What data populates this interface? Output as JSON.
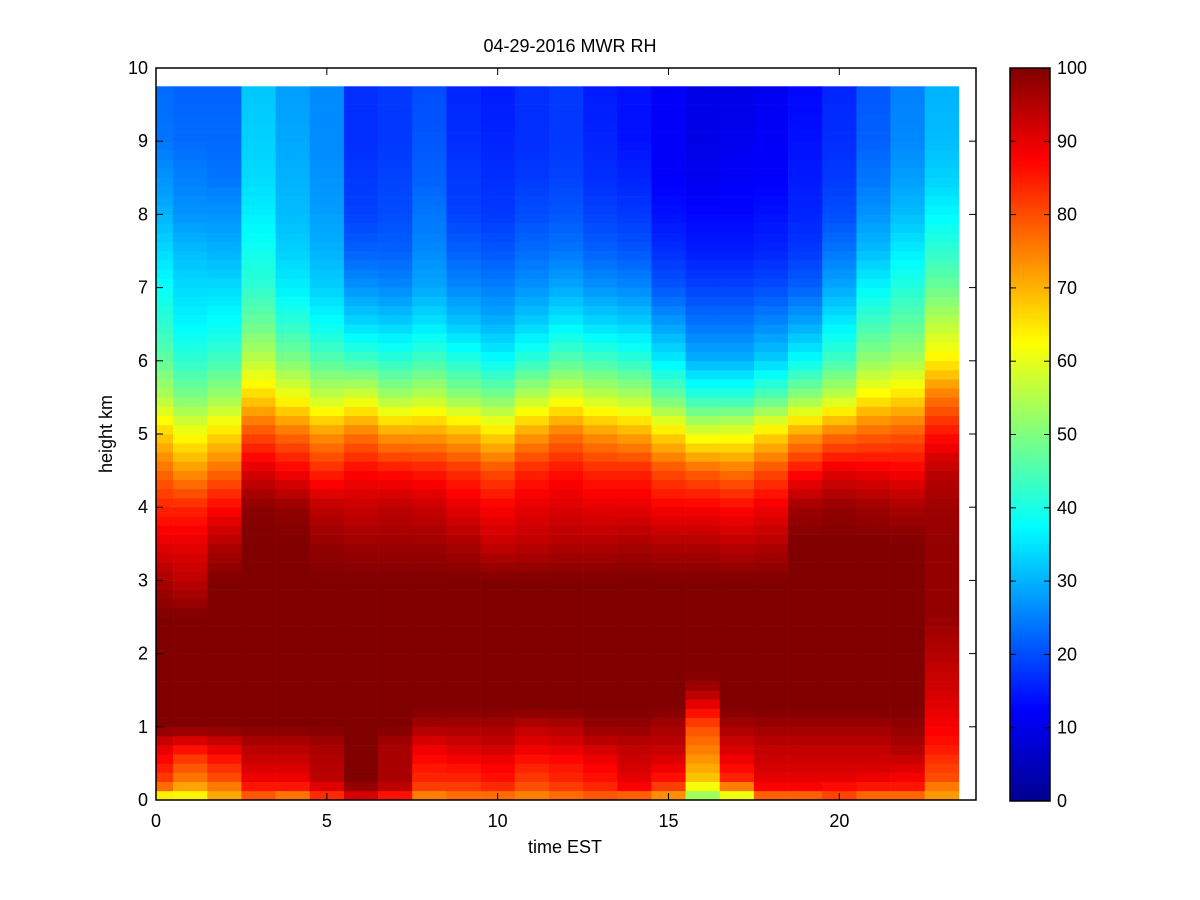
{
  "chart_data": {
    "type": "heatmap",
    "title": "04-29-2016 MWR RH",
    "xlabel": "time EST",
    "ylabel": "height km",
    "xlim": [
      0,
      24
    ],
    "ylim": [
      0,
      10
    ],
    "xticks": [
      0,
      5,
      10,
      15,
      20
    ],
    "xtick_labels": [
      "0",
      "5",
      "10",
      "15",
      "20"
    ],
    "yticks": [
      0,
      1,
      2,
      3,
      4,
      5,
      6,
      7,
      8,
      9,
      10
    ],
    "ytick_labels": [
      "0",
      "1",
      "2",
      "3",
      "4",
      "5",
      "6",
      "7",
      "8",
      "9",
      "10"
    ],
    "colormap": "jet",
    "clim": [
      0,
      100
    ],
    "colorbar_ticks": [
      0,
      10,
      20,
      30,
      40,
      50,
      60,
      70,
      80,
      90,
      100
    ],
    "colorbar_tick_labels": [
      "0",
      "10",
      "20",
      "30",
      "40",
      "50",
      "60",
      "70",
      "80",
      "90",
      "100"
    ],
    "grid": false,
    "data_extent": {
      "x": [
        0,
        23.5
      ],
      "y": [
        0,
        9.75
      ]
    },
    "x_time_centers": [
      0.25,
      1,
      2,
      3,
      4,
      5,
      6,
      7,
      8,
      9,
      10,
      11,
      12,
      13,
      14,
      15,
      16,
      17,
      18,
      19,
      20,
      21,
      22,
      23
    ],
    "x_time_edges": [
      0,
      0.5,
      1.5,
      2.5,
      3.5,
      4.5,
      5.5,
      6.5,
      7.5,
      8.5,
      9.5,
      10.5,
      11.5,
      12.5,
      13.5,
      14.5,
      15.5,
      16.5,
      17.5,
      18.5,
      19.5,
      20.5,
      21.5,
      22.5,
      23.5
    ],
    "height_km_levels": [
      0,
      0.05,
      0.1,
      0.2,
      0.3,
      0.5,
      0.75,
      1,
      1.25,
      1.5,
      1.75,
      2,
      2.25,
      2.5,
      3,
      3.5,
      4,
      4.5,
      5,
      5.5,
      6,
      6.5,
      7,
      7.5,
      8,
      8.5,
      9,
      9.75
    ],
    "rh_profiles_percent": [
      [
        60,
        62,
        70,
        78,
        82,
        86,
        91,
        100,
        100,
        100,
        100,
        100,
        100,
        100,
        96,
        90,
        84,
        77,
        67,
        55,
        47,
        42,
        38,
        34,
        30,
        27,
        24,
        23
      ],
      [
        58,
        62,
        68,
        72,
        76,
        80,
        88,
        100,
        100,
        100,
        100,
        100,
        100,
        100,
        94,
        90,
        84,
        73,
        62,
        50,
        42,
        37,
        34,
        31,
        27,
        25,
        23,
        22
      ],
      [
        65,
        70,
        74,
        76,
        80,
        84,
        91,
        100,
        100,
        100,
        100,
        100,
        100,
        100,
        100,
        95,
        87,
        77,
        66,
        53,
        44,
        38,
        34,
        30,
        27,
        24,
        23,
        22
      ],
      [
        70,
        78,
        82,
        86,
        89,
        92,
        95,
        100,
        100,
        100,
        100,
        100,
        100,
        100,
        100,
        100,
        99,
        91,
        80,
        67,
        56,
        48,
        42,
        39,
        36,
        34,
        33,
        32
      ],
      [
        66,
        74,
        82,
        86,
        89,
        92,
        95,
        100,
        100,
        100,
        100,
        100,
        100,
        100,
        100,
        100,
        98,
        88,
        77,
        62,
        50,
        42,
        36,
        33,
        31,
        30,
        29,
        28
      ],
      [
        72,
        82,
        87,
        91,
        94,
        95,
        96,
        100,
        100,
        100,
        100,
        100,
        100,
        100,
        100,
        98,
        94,
        84,
        73,
        57,
        46,
        38,
        33,
        30,
        28,
        27,
        26,
        26
      ],
      [
        78,
        90,
        96,
        98,
        100,
        100,
        100,
        100,
        100,
        100,
        100,
        100,
        100,
        100,
        100,
        97,
        93,
        87,
        76,
        59,
        44,
        34,
        27,
        22,
        19,
        18,
        17,
        17
      ],
      [
        72,
        84,
        92,
        94,
        96,
        96,
        96,
        100,
        100,
        100,
        100,
        100,
        100,
        100,
        100,
        97,
        94,
        86,
        72,
        54,
        42,
        33,
        26,
        22,
        20,
        19,
        18,
        18
      ],
      [
        66,
        74,
        78,
        82,
        84,
        86,
        90,
        96,
        100,
        100,
        100,
        100,
        100,
        100,
        100,
        97,
        93,
        85,
        72,
        56,
        44,
        35,
        29,
        26,
        24,
        22,
        21,
        20
      ],
      [
        68,
        76,
        80,
        82,
        84,
        87,
        92,
        96,
        100,
        100,
        100,
        100,
        100,
        100,
        100,
        96,
        90,
        83,
        70,
        52,
        41,
        32,
        26,
        22,
        19,
        18,
        17,
        16
      ],
      [
        62,
        76,
        80,
        84,
        86,
        88,
        93,
        96,
        100,
        100,
        100,
        100,
        100,
        100,
        100,
        93,
        88,
        80,
        66,
        50,
        38,
        30,
        25,
        21,
        18,
        17,
        16,
        15
      ],
      [
        66,
        74,
        78,
        80,
        82,
        85,
        90,
        94,
        100,
        100,
        100,
        100,
        100,
        100,
        100,
        94,
        90,
        84,
        72,
        56,
        42,
        33,
        27,
        23,
        20,
        18,
        17,
        17
      ],
      [
        68,
        76,
        80,
        82,
        84,
        86,
        91,
        95,
        100,
        100,
        100,
        100,
        100,
        100,
        100,
        95,
        91,
        86,
        76,
        60,
        46,
        36,
        29,
        24,
        21,
        19,
        18,
        18
      ],
      [
        68,
        78,
        82,
        84,
        86,
        88,
        93,
        98,
        100,
        100,
        100,
        100,
        100,
        100,
        100,
        95,
        90,
        84,
        73,
        57,
        44,
        34,
        27,
        22,
        19,
        17,
        16,
        15
      ],
      [
        64,
        76,
        84,
        88,
        90,
        92,
        94,
        98,
        100,
        100,
        100,
        100,
        100,
        100,
        100,
        96,
        90,
        84,
        71,
        55,
        42,
        33,
        26,
        21,
        18,
        16,
        14,
        14
      ],
      [
        60,
        72,
        78,
        82,
        86,
        90,
        94,
        96,
        100,
        100,
        100,
        100,
        100,
        100,
        100,
        95,
        88,
        80,
        66,
        48,
        36,
        28,
        21,
        17,
        14,
        12,
        12,
        12
      ],
      [
        40,
        52,
        58,
        62,
        68,
        72,
        76,
        80,
        88,
        96,
        100,
        100,
        100,
        100,
        100,
        95,
        88,
        78,
        60,
        42,
        30,
        24,
        19,
        15,
        13,
        11,
        10,
        10
      ],
      [
        48,
        58,
        70,
        76,
        84,
        88,
        92,
        96,
        100,
        100,
        100,
        100,
        100,
        100,
        100,
        94,
        87,
        76,
        61,
        42,
        30,
        24,
        19,
        15,
        13,
        12,
        11,
        10
      ],
      [
        66,
        76,
        84,
        88,
        90,
        92,
        94,
        97,
        100,
        100,
        100,
        100,
        100,
        100,
        100,
        95,
        89,
        80,
        66,
        46,
        33,
        26,
        20,
        16,
        14,
        12,
        12,
        11
      ],
      [
        68,
        76,
        84,
        88,
        90,
        92,
        94,
        97,
        100,
        100,
        100,
        100,
        100,
        100,
        100,
        100,
        97,
        86,
        72,
        52,
        38,
        29,
        22,
        18,
        16,
        15,
        14,
        13
      ],
      [
        70,
        80,
        84,
        87,
        90,
        92,
        94,
        97,
        100,
        100,
        100,
        100,
        100,
        100,
        100,
        100,
        98,
        90,
        76,
        57,
        44,
        36,
        29,
        24,
        20,
        18,
        17,
        16
      ],
      [
        68,
        76,
        82,
        86,
        89,
        92,
        94,
        97,
        100,
        100,
        100,
        100,
        100,
        100,
        100,
        100,
        97,
        89,
        78,
        64,
        52,
        44,
        37,
        31,
        27,
        24,
        22,
        21
      ],
      [
        66,
        76,
        82,
        86,
        88,
        92,
        96,
        98,
        100,
        100,
        100,
        100,
        100,
        100,
        100,
        100,
        96,
        88,
        79,
        66,
        54,
        47,
        41,
        36,
        31,
        28,
        26,
        25
      ],
      [
        62,
        72,
        74,
        76,
        80,
        82,
        86,
        88,
        90,
        92,
        93,
        95,
        96,
        98,
        98,
        98,
        97,
        94,
        86,
        76,
        64,
        56,
        48,
        42,
        37,
        33,
        31,
        30
      ]
    ]
  }
}
